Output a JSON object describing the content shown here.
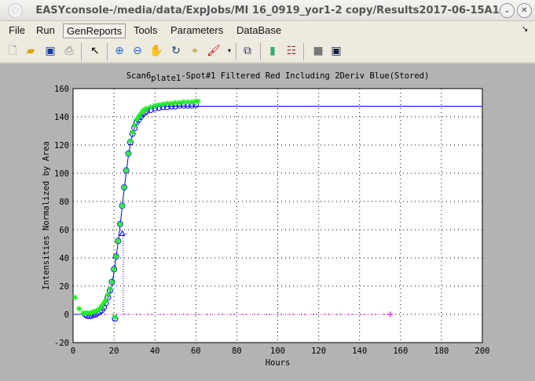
{
  "window": {
    "title": "EASYconsole-/media/data/ExpJobs/MI 16_0919_yor1-2 copy/Results2017-06-15A1"
  },
  "menu": [
    "File",
    "Run",
    "GenReports",
    "Tools",
    "Parameters",
    "DataBase"
  ],
  "toolbar": [
    "new-file",
    "open",
    "save",
    "print",
    "pointer",
    "zoom-in",
    "zoom-out",
    "pan",
    "rotate",
    "data-cursor",
    "brush",
    "link",
    "colorbar",
    "legend",
    "hide-plot-tools",
    "show-plot-tools"
  ],
  "chart_data": {
    "type": "scatter",
    "title_parts": [
      "Scan6",
      "plate1",
      "-Spot#1 Filtered Red Including 2Deriv Blue(Stored)"
    ],
    "xlabel": "Hours",
    "ylabel": "Intensities Normalized by Area",
    "xlim": [
      0,
      200
    ],
    "ylim": [
      -20,
      160
    ],
    "xticks": [
      0,
      20,
      40,
      60,
      80,
      100,
      120,
      140,
      160,
      180,
      200
    ],
    "yticks": [
      -20,
      0,
      20,
      40,
      60,
      80,
      100,
      120,
      140,
      160
    ],
    "grid": true,
    "colors": {
      "stars": "#22ee22",
      "circles": "#0000ff",
      "fit": "#0000ff",
      "baseline": "#ff00ff"
    },
    "series": [
      {
        "marker": "star",
        "x": [
          1,
          3,
          5,
          6,
          7,
          8,
          9,
          10,
          11,
          12,
          13,
          14,
          15,
          16,
          17,
          18,
          19,
          20,
          20.5,
          21,
          22,
          23,
          24,
          25,
          26,
          27,
          28,
          29,
          30,
          31,
          32,
          33,
          34,
          35,
          36,
          38,
          40,
          42,
          44,
          46,
          48,
          50,
          52,
          54,
          56,
          58,
          60,
          61
        ],
        "y": [
          12,
          4,
          1,
          1,
          1,
          1,
          1,
          2,
          2,
          3,
          4,
          6,
          8,
          10,
          14,
          18,
          23,
          32,
          -2,
          41,
          52,
          64,
          77,
          90,
          102,
          114,
          123,
          129,
          134,
          138,
          140,
          142,
          144,
          145,
          146,
          147,
          148,
          148.5,
          149,
          149.5,
          149.5,
          150,
          150,
          150.5,
          150.5,
          150.5,
          151,
          151
        ]
      },
      {
        "marker": "circle",
        "x": [
          6,
          7,
          8,
          9,
          10,
          11,
          12,
          13,
          14,
          15,
          16,
          17,
          18,
          19,
          20,
          20.5,
          21,
          22,
          23,
          24,
          25,
          26,
          27,
          28,
          29,
          30,
          31,
          32,
          33,
          34,
          35,
          36,
          38,
          40,
          42,
          44,
          46,
          48,
          50,
          52,
          54,
          56,
          58,
          60
        ],
        "y": [
          0,
          -1,
          -1,
          -1,
          0,
          0,
          1,
          2,
          3,
          5,
          8,
          12,
          17,
          23,
          32,
          -3,
          41,
          52,
          64,
          77,
          90,
          102,
          114,
          122,
          128,
          132,
          136,
          138,
          140,
          142,
          143,
          144,
          145,
          146,
          146.5,
          147,
          147,
          147.5,
          147.5,
          148,
          148,
          148,
          148,
          148.5
        ]
      },
      {
        "marker": "line",
        "x": [
          0,
          5,
          8,
          10,
          12,
          14,
          16,
          18,
          19,
          20,
          21,
          22,
          23,
          24,
          25,
          26,
          27,
          28,
          29,
          30,
          32,
          34,
          36,
          38,
          40,
          45,
          50,
          200
        ],
        "y": [
          0,
          0,
          0,
          0.5,
          1.5,
          4,
          8,
          15,
          21,
          30,
          40,
          51,
          63,
          76,
          89,
          101,
          112,
          121,
          127,
          132,
          138,
          142,
          144.5,
          146,
          147,
          147.5,
          147.5,
          147.5
        ]
      }
    ],
    "marker_triangle": {
      "x": 24,
      "y": 57
    },
    "vline": {
      "x": 24.5,
      "y": [
        0,
        57
      ]
    },
    "baseline": {
      "y": 0,
      "x": [
        0,
        155
      ]
    },
    "plus_marker": {
      "x": 155,
      "y": 0
    }
  }
}
